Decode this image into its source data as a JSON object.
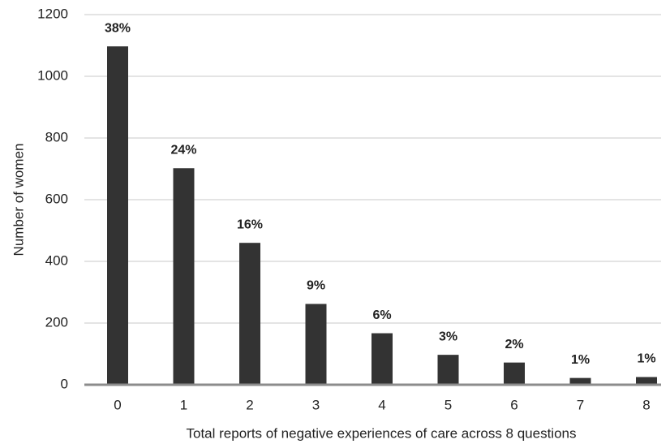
{
  "chart_data": {
    "type": "bar",
    "x_label": "Total reports of negative experiences of care across 8 questions",
    "y_label": "Number of women",
    "categories": [
      "0",
      "1",
      "2",
      "3",
      "4",
      "5",
      "6",
      "7",
      "8"
    ],
    "values": [
      1097,
      702,
      460,
      262,
      167,
      97,
      72,
      22,
      25
    ],
    "bar_labels": [
      "38%",
      "24%",
      "16%",
      "9%",
      "6%",
      "3%",
      "2%",
      "1%",
      "1%"
    ],
    "color": "#333333",
    "ylim": [
      0,
      1200
    ],
    "yticks": [
      0,
      200,
      400,
      600,
      800,
      1000,
      1200
    ],
    "grid": true
  }
}
